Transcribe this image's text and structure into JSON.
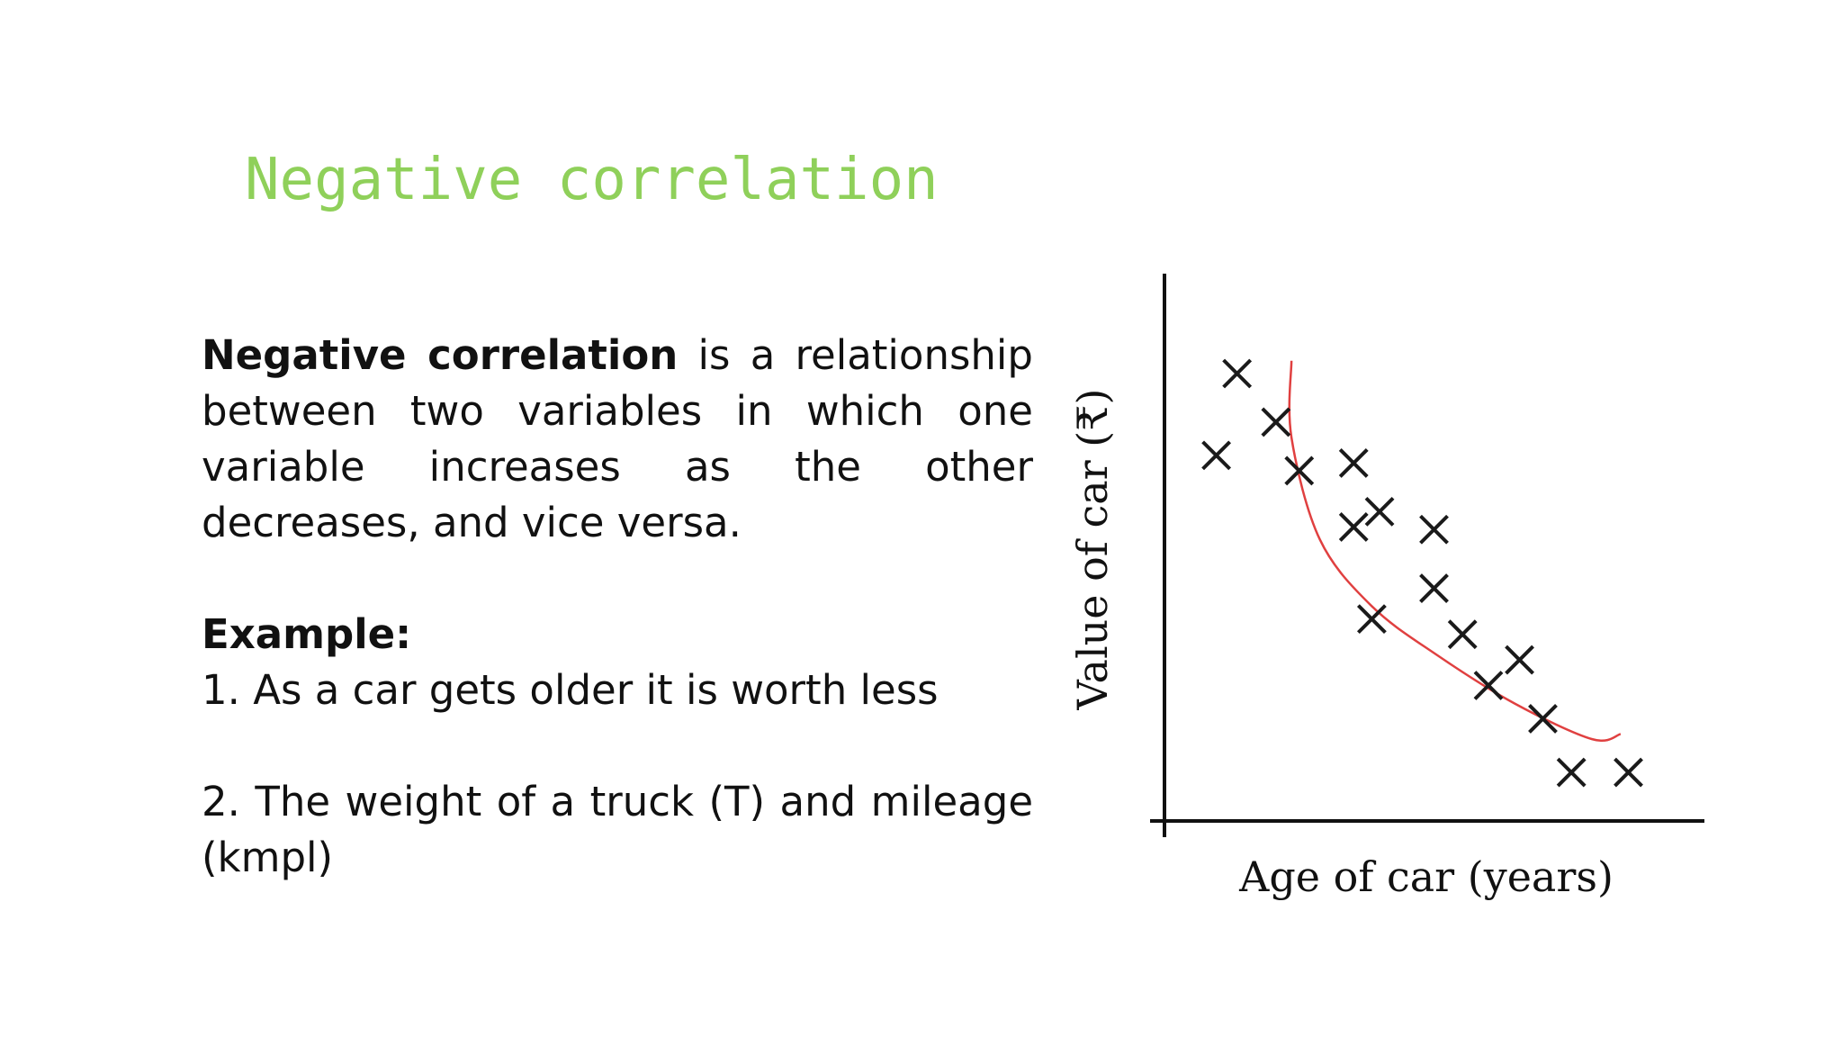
{
  "title": "Negative correlation",
  "definition": {
    "term": "Negative correlation",
    "rest": " is a relationship between two variables in which one variable increases as the other decreases, and vice versa."
  },
  "example": {
    "heading": "Example:",
    "items": [
      "1. As a car gets older it is worth less",
      "2. The weight of a truck (T) and mileage (kmpl)"
    ]
  },
  "chart_data": {
    "type": "scatter",
    "xlabel": "Age of car (years)",
    "ylabel": "Value of car  (₹)",
    "title": "",
    "grid": false,
    "legend": "none",
    "xlim": [
      0,
      20
    ],
    "ylim": [
      0,
      20
    ],
    "marker": "x",
    "marker_color": "#1a1a1a",
    "points": [
      {
        "x": 2.0,
        "y": 14.3
      },
      {
        "x": 2.8,
        "y": 17.5
      },
      {
        "x": 4.3,
        "y": 15.6
      },
      {
        "x": 5.2,
        "y": 13.7
      },
      {
        "x": 7.3,
        "y": 14.0
      },
      {
        "x": 7.3,
        "y": 11.5
      },
      {
        "x": 8.3,
        "y": 12.1
      },
      {
        "x": 8.0,
        "y": 7.9
      },
      {
        "x": 10.4,
        "y": 11.4
      },
      {
        "x": 10.4,
        "y": 9.1
      },
      {
        "x": 11.5,
        "y": 7.3
      },
      {
        "x": 13.7,
        "y": 6.3
      },
      {
        "x": 12.5,
        "y": 5.3
      },
      {
        "x": 14.6,
        "y": 4.0
      },
      {
        "x": 15.7,
        "y": 1.9
      },
      {
        "x": 17.9,
        "y": 1.9
      }
    ],
    "trend_curve": {
      "color": "#e04040",
      "points": [
        {
          "x": 4.9,
          "y": 18.0
        },
        {
          "x": 4.9,
          "y": 15.0
        },
        {
          "x": 6.0,
          "y": 11.0
        },
        {
          "x": 8.0,
          "y": 8.4
        },
        {
          "x": 10.5,
          "y": 6.5
        },
        {
          "x": 13.5,
          "y": 4.6
        },
        {
          "x": 16.5,
          "y": 3.2
        },
        {
          "x": 17.6,
          "y": 3.4
        }
      ]
    }
  }
}
